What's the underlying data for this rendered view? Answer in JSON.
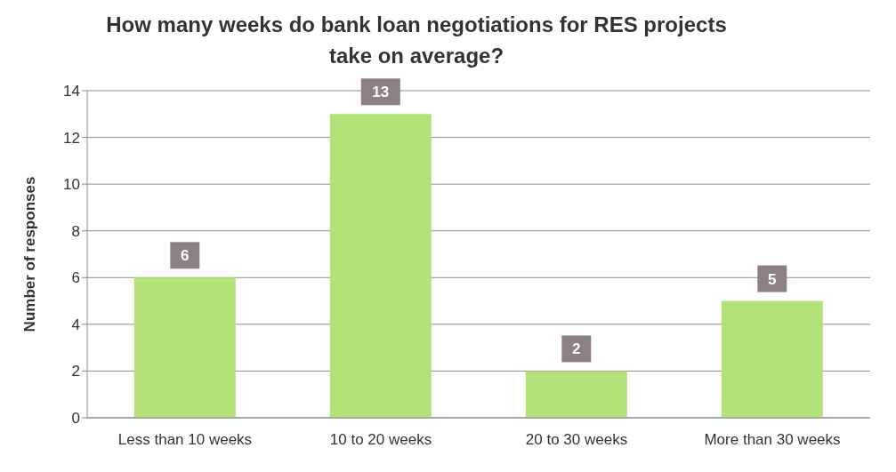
{
  "chart_data": {
    "type": "bar",
    "title": "How many weeks do bank loan negotiations for RES projects take on average?",
    "ylabel": "Number of responses",
    "categories": [
      "Less than 10 weeks",
      "10 to 20 weeks",
      "20 to 30 weeks",
      "More than 30 weeks"
    ],
    "values": [
      6,
      13,
      2,
      5
    ],
    "color": "#b3e378",
    "ylim": [
      0,
      14
    ],
    "yticks": [
      0,
      2,
      4,
      6,
      8,
      10,
      12,
      14
    ],
    "grid": "y",
    "data_labels": true
  }
}
